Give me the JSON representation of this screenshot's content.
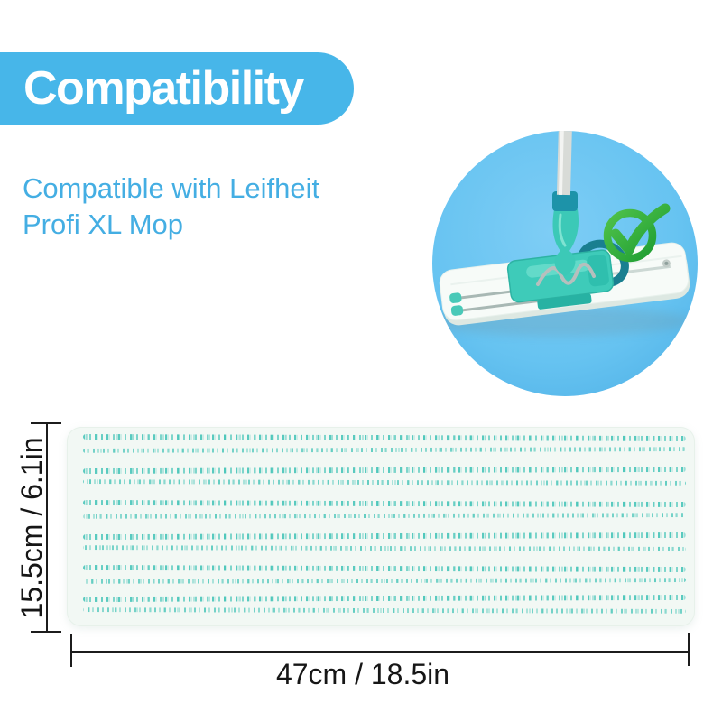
{
  "banner": {
    "title": "Compatibility",
    "bg_color": "#47b6e9",
    "text_color": "#ffffff"
  },
  "subtitle": {
    "line1": "Compatible with Leifheit",
    "line2": "Profi XL Mop",
    "color": "#44aee3"
  },
  "photo": {
    "subject": "leifheit-profi-xl-flat-mop",
    "circle_color": "#69c4f2",
    "checkmark_icon_color": "#2ca43a",
    "mop_accent_color": "#3ecbb9",
    "pole_color": "#d8dbd7"
  },
  "product": {
    "item": "replacement-mop-pad",
    "pad_color": "#f2f8f4",
    "stripe_color": "#3ec2b5",
    "dimensions": {
      "height_label": "15.5cm / 6.1in",
      "width_label": "47cm / 18.5in",
      "line_color": "#1c1c1c"
    }
  }
}
